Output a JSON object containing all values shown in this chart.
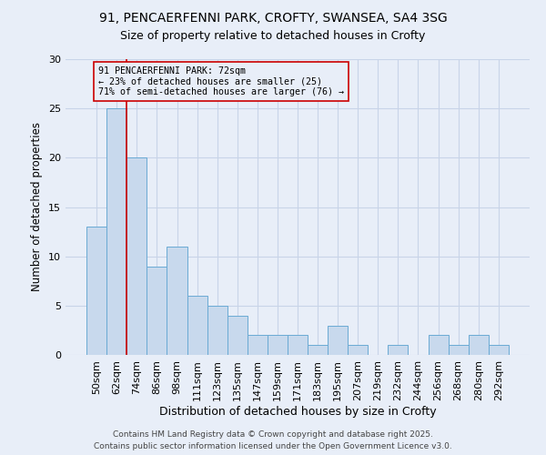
{
  "title_line1": "91, PENCAERFENNI PARK, CROFTY, SWANSEA, SA4 3SG",
  "title_line2": "Size of property relative to detached houses in Crofty",
  "xlabel": "Distribution of detached houses by size in Crofty",
  "ylabel": "Number of detached properties",
  "categories": [
    "50sqm",
    "62sqm",
    "74sqm",
    "86sqm",
    "98sqm",
    "111sqm",
    "123sqm",
    "135sqm",
    "147sqm",
    "159sqm",
    "171sqm",
    "183sqm",
    "195sqm",
    "207sqm",
    "219sqm",
    "232sqm",
    "244sqm",
    "256sqm",
    "268sqm",
    "280sqm",
    "292sqm"
  ],
  "values": [
    13,
    25,
    20,
    9,
    11,
    6,
    5,
    4,
    2,
    2,
    2,
    1,
    3,
    1,
    0,
    1,
    0,
    2,
    1,
    2,
    1
  ],
  "bar_color": "#c8d9ed",
  "bar_edge_color": "#6aaad4",
  "bar_edge_width": 0.7,
  "grid_color": "#c8d4e8",
  "background_color": "#e8eef8",
  "property_index": 2,
  "annotation_text": "91 PENCAERFENNI PARK: 72sqm\n← 23% of detached houses are smaller (25)\n71% of semi-detached houses are larger (76) →",
  "red_line_color": "#cc0000",
  "annotation_box_edge_color": "#cc0000",
  "footer_text": "Contains HM Land Registry data © Crown copyright and database right 2025.\nContains public sector information licensed under the Open Government Licence v3.0.",
  "ylim": [
    0,
    30
  ],
  "yticks": [
    0,
    5,
    10,
    15,
    20,
    25,
    30
  ]
}
